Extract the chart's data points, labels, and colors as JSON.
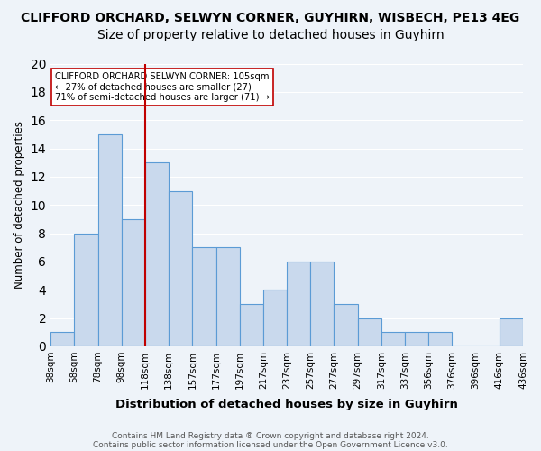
{
  "title1": "CLIFFORD ORCHARD, SELWYN CORNER, GUYHIRN, WISBECH, PE13 4EG",
  "title2": "Size of property relative to detached houses in Guyhirn",
  "xlabel": "Distribution of detached houses by size in Guyhirn",
  "ylabel": "Number of detached properties",
  "footer1": "Contains HM Land Registry data ® Crown copyright and database right 2024.",
  "footer2": "Contains public sector information licensed under the Open Government Licence v3.0.",
  "bins": [
    "38sqm",
    "58sqm",
    "78sqm",
    "98sqm",
    "118sqm",
    "138sqm",
    "157sqm",
    "177sqm",
    "197sqm",
    "217sqm",
    "237sqm",
    "257sqm",
    "277sqm",
    "297sqm",
    "317sqm",
    "337sqm",
    "356sqm",
    "376sqm",
    "396sqm",
    "416sqm",
    "436sqm"
  ],
  "values": [
    1,
    8,
    15,
    9,
    13,
    11,
    7,
    7,
    3,
    4,
    6,
    6,
    3,
    2,
    1,
    1,
    1,
    0,
    0,
    2
  ],
  "bar_color": "#c9d9ed",
  "bar_edge_color": "#5b9bd5",
  "vline_color": "#c00000",
  "vline_position": 3.5,
  "annotation_title": "CLIFFORD ORCHARD SELWYN CORNER: 105sqm",
  "annotation_line1": "← 27% of detached houses are smaller (27)",
  "annotation_line2": "71% of semi-detached houses are larger (71) →",
  "annotation_box_color": "#ffffff",
  "annotation_border_color": "#c00000",
  "ylim": [
    0,
    20
  ],
  "yticks": [
    0,
    2,
    4,
    6,
    8,
    10,
    12,
    14,
    16,
    18,
    20
  ],
  "bg_color": "#eef3f9",
  "grid_color": "#ffffff",
  "title1_fontsize": 10,
  "title2_fontsize": 10
}
